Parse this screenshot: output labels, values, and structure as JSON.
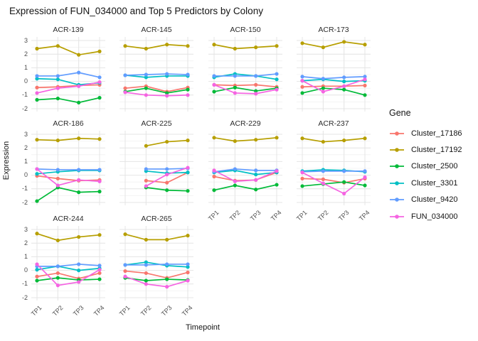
{
  "chart_data": {
    "type": "line",
    "title": "Expression of FUN_034000 and Top 5 Predictors by Colony",
    "xlabel": "Timepoint",
    "ylabel": "Expression",
    "legend_title": "Gene",
    "x": [
      "TP1",
      "TP2",
      "TP3",
      "TP4"
    ],
    "ylim": [
      -2.25,
      3.25
    ],
    "yticks": [
      3,
      2,
      1,
      0,
      -1,
      -2
    ],
    "grid": true,
    "legend_position": "right",
    "series": [
      {
        "name": "Cluster_17186",
        "color": "#F8766D"
      },
      {
        "name": "Cluster_17192",
        "color": "#B79F00"
      },
      {
        "name": "Cluster_2500",
        "color": "#00BA38"
      },
      {
        "name": "Cluster_3301",
        "color": "#00BFC4"
      },
      {
        "name": "Cluster_9420",
        "color": "#619CFF"
      },
      {
        "name": "FUN_034000",
        "color": "#F564E2"
      }
    ],
    "facets": [
      {
        "name": "ACR-139",
        "values": {
          "Cluster_17186": [
            -0.45,
            -0.4,
            -0.3,
            -0.25
          ],
          "Cluster_17192": [
            2.4,
            2.6,
            1.95,
            2.2
          ],
          "Cluster_2500": [
            -1.35,
            -1.25,
            -1.55,
            -1.2
          ],
          "Cluster_3301": [
            0.2,
            0.15,
            -0.25,
            -0.1
          ],
          "Cluster_9420": [
            0.4,
            0.4,
            0.65,
            0.3
          ],
          "FUN_034000": [
            -0.85,
            -0.5,
            -0.35,
            -0.05
          ]
        }
      },
      {
        "name": "ACR-145",
        "values": {
          "Cluster_17186": [
            -0.5,
            -0.35,
            -0.75,
            -0.45
          ],
          "Cluster_17192": [
            2.6,
            2.4,
            2.7,
            2.6
          ],
          "Cluster_2500": [
            -0.75,
            -0.5,
            -0.85,
            -0.6
          ],
          "Cluster_3301": [
            0.45,
            0.3,
            0.4,
            0.4
          ],
          "Cluster_9420": [
            0.45,
            0.5,
            0.55,
            0.5
          ],
          "FUN_034000": [
            -0.8,
            -1.0,
            -1.05,
            -1.0
          ]
        }
      },
      {
        "name": "ACR-150",
        "values": {
          "Cluster_17186": [
            -0.25,
            -0.3,
            -0.25,
            -0.4
          ],
          "Cluster_17192": [
            2.7,
            2.4,
            2.5,
            2.6
          ],
          "Cluster_2500": [
            -0.75,
            -0.45,
            -0.7,
            -0.5
          ],
          "Cluster_3301": [
            0.3,
            0.55,
            0.4,
            0.15
          ],
          "Cluster_9420": [
            0.4,
            0.4,
            0.4,
            0.55
          ],
          "FUN_034000": [
            -0.25,
            -0.85,
            -0.9,
            -0.6
          ]
        }
      },
      {
        "name": "ACR-173",
        "values": {
          "Cluster_17186": [
            -0.4,
            -0.35,
            -0.35,
            -0.3
          ],
          "Cluster_17192": [
            2.8,
            2.5,
            2.9,
            2.7
          ],
          "Cluster_2500": [
            -0.85,
            -0.5,
            -0.6,
            -1.0
          ],
          "Cluster_3301": [
            0.05,
            0.15,
            0.0,
            0.05
          ],
          "Cluster_9420": [
            0.35,
            0.2,
            0.3,
            0.35
          ],
          "FUN_034000": [
            0.05,
            -0.75,
            -0.35,
            0.15
          ]
        }
      },
      {
        "name": "ACR-186",
        "values": {
          "Cluster_17186": [
            -0.05,
            -0.25,
            -0.4,
            -0.35
          ],
          "Cluster_17192": [
            2.6,
            2.55,
            2.7,
            2.65
          ],
          "Cluster_2500": [
            -1.9,
            -0.9,
            -1.25,
            -1.2
          ],
          "Cluster_3301": [
            0.1,
            0.25,
            0.35,
            0.35
          ],
          "Cluster_9420": [
            0.45,
            0.4,
            0.4,
            0.4
          ],
          "FUN_034000": [
            0.45,
            -0.75,
            -0.35,
            -0.45
          ]
        }
      },
      {
        "name": "ACR-225",
        "values": {
          "Cluster_17186": [
            null,
            -0.4,
            -0.55,
            0.2
          ],
          "Cluster_17192": [
            null,
            2.15,
            2.45,
            2.55
          ],
          "Cluster_2500": [
            null,
            -0.9,
            -1.1,
            -1.15
          ],
          "Cluster_3301": [
            null,
            0.3,
            0.15,
            0.2
          ],
          "Cluster_9420": [
            null,
            0.45,
            0.45,
            0.5
          ],
          "FUN_034000": [
            null,
            -0.8,
            0.05,
            0.55
          ]
        }
      },
      {
        "name": "ACR-229",
        "values": {
          "Cluster_17186": [
            -0.1,
            -0.4,
            -0.35,
            0.2
          ],
          "Cluster_17192": [
            2.75,
            2.5,
            2.6,
            2.75
          ],
          "Cluster_2500": [
            -1.1,
            -0.75,
            -1.05,
            -0.7
          ],
          "Cluster_3301": [
            0.2,
            0.35,
            0.05,
            0.2
          ],
          "Cluster_9420": [
            0.25,
            0.45,
            0.35,
            0.35
          ],
          "FUN_034000": [
            0.35,
            -0.45,
            -0.35,
            0.3
          ]
        }
      },
      {
        "name": "ACR-237",
        "values": {
          "Cluster_17186": [
            -0.25,
            -0.3,
            -0.55,
            -0.25
          ],
          "Cluster_17192": [
            2.7,
            2.45,
            2.55,
            2.7
          ],
          "Cluster_2500": [
            -0.8,
            -0.65,
            -0.5,
            -0.75
          ],
          "Cluster_3301": [
            0.3,
            0.4,
            0.35,
            0.25
          ],
          "Cluster_9420": [
            0.25,
            0.3,
            0.3,
            0.3
          ],
          "FUN_034000": [
            0.2,
            -0.6,
            -1.35,
            -0.15
          ]
        }
      },
      {
        "name": "ACR-244",
        "values": {
          "Cluster_17186": [
            -0.45,
            -0.2,
            -0.6,
            -0.2
          ],
          "Cluster_17192": [
            2.7,
            2.2,
            2.45,
            2.6
          ],
          "Cluster_2500": [
            -0.75,
            -0.55,
            -0.7,
            -0.65
          ],
          "Cluster_3301": [
            0.05,
            0.3,
            0.0,
            0.15
          ],
          "Cluster_9420": [
            0.3,
            0.3,
            0.45,
            0.35
          ],
          "FUN_034000": [
            0.45,
            -1.1,
            -0.85,
            0.05
          ]
        }
      },
      {
        "name": "ACR-265",
        "values": {
          "Cluster_17186": [
            -0.05,
            -0.2,
            -0.55,
            -0.15
          ],
          "Cluster_17192": [
            2.65,
            2.25,
            2.25,
            2.55
          ],
          "Cluster_2500": [
            -0.55,
            -0.75,
            -0.65,
            -0.7
          ],
          "Cluster_3301": [
            0.4,
            0.6,
            0.35,
            0.25
          ],
          "Cluster_9420": [
            0.4,
            0.4,
            0.45,
            0.45
          ],
          "FUN_034000": [
            -0.45,
            -1.0,
            -1.2,
            -0.75
          ]
        }
      }
    ],
    "colors": {
      "grid_major": "#e4e4e4",
      "grid_minor": "#f1f1f1",
      "axis_text": "#4d4d4d",
      "background": "#ffffff"
    }
  }
}
